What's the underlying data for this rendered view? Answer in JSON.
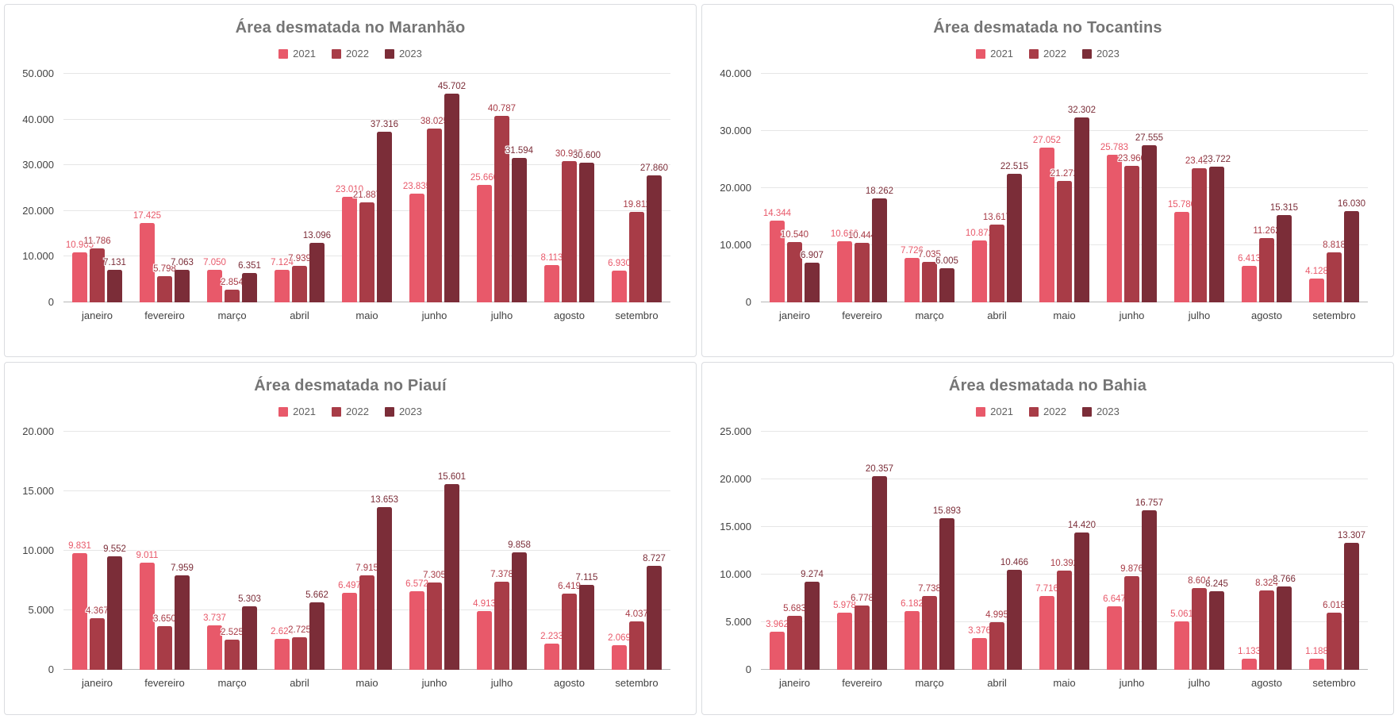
{
  "palette": {
    "series": {
      "2021": "#e8596a",
      "2022": "#a83c47",
      "2023": "#7b2d38"
    },
    "title_color": "#757575",
    "legend_text": "#616161",
    "axis_label_color": "#424242",
    "gridline": "#e6e6e6",
    "baseline": "#b7b7b7",
    "panel_border": "#dadce0",
    "background": "#ffffff"
  },
  "chart_data": [
    {
      "type": "bar",
      "title": "Área desmatada no Maranhão",
      "legend": [
        "2021",
        "2022",
        "2023"
      ],
      "legend_position": "top",
      "grid": true,
      "categories": [
        "janeiro",
        "fevereiro",
        "março",
        "abril",
        "maio",
        "junho",
        "julho",
        "agosto",
        "setembro"
      ],
      "series": [
        {
          "name": "2021",
          "values": [
            10905,
            17425,
            7050,
            7124,
            23010,
            23835,
            25660,
            8113,
            6930
          ]
        },
        {
          "name": "2022",
          "values": [
            11786,
            5798,
            2854,
            7939,
            21887,
            38025,
            40787,
            30935,
            19811
          ]
        },
        {
          "name": "2023",
          "values": [
            7131,
            7063,
            6351,
            13096,
            37316,
            45702,
            31594,
            30600,
            27860
          ]
        }
      ],
      "ylim": [
        0,
        50000
      ],
      "y_ticks": [
        0,
        10000,
        20000,
        30000,
        40000,
        50000
      ],
      "xlabel": "",
      "ylabel": ""
    },
    {
      "type": "bar",
      "title": "Área desmatada no Tocantins",
      "legend": [
        "2021",
        "2022",
        "2023"
      ],
      "legend_position": "top",
      "grid": true,
      "categories": [
        "janeiro",
        "fevereiro",
        "março",
        "abril",
        "maio",
        "junho",
        "julho",
        "agosto",
        "setembro"
      ],
      "series": [
        {
          "name": "2021",
          "values": [
            14344,
            10663,
            7726,
            10872,
            27052,
            25783,
            15780,
            6413,
            4128
          ]
        },
        {
          "name": "2022",
          "values": [
            10540,
            10444,
            7035,
            13617,
            21272,
            23960,
            23437,
            11262,
            8818
          ]
        },
        {
          "name": "2023",
          "values": [
            6907,
            18262,
            6005,
            22515,
            32302,
            27555,
            23722,
            15315,
            16030
          ]
        }
      ],
      "ylim": [
        0,
        40000
      ],
      "y_ticks": [
        0,
        10000,
        20000,
        30000,
        40000
      ],
      "xlabel": "",
      "ylabel": ""
    },
    {
      "type": "bar",
      "title": "Área desmatada no Piauí",
      "legend": [
        "2021",
        "2022",
        "2023"
      ],
      "legend_position": "top",
      "grid": true,
      "categories": [
        "janeiro",
        "fevereiro",
        "março",
        "abril",
        "maio",
        "junho",
        "julho",
        "agosto",
        "setembro"
      ],
      "series": [
        {
          "name": "2021",
          "values": [
            9831,
            9011,
            3737,
            2624,
            6497,
            6572,
            4913,
            2233,
            2069
          ]
        },
        {
          "name": "2022",
          "values": [
            4367,
            3650,
            2525,
            2725,
            7915,
            7305,
            7378,
            6419,
            4037
          ]
        },
        {
          "name": "2023",
          "values": [
            9552,
            7959,
            5303,
            5662,
            13653,
            15601,
            9858,
            7115,
            8727
          ]
        }
      ],
      "ylim": [
        0,
        20000
      ],
      "y_ticks": [
        0,
        5000,
        10000,
        15000,
        20000
      ],
      "xlabel": "",
      "ylabel": ""
    },
    {
      "type": "bar",
      "title": "Área desmatada no Bahia",
      "legend": [
        "2021",
        "2022",
        "2023"
      ],
      "legend_position": "top",
      "grid": true,
      "categories": [
        "janeiro",
        "fevereiro",
        "março",
        "abril",
        "maio",
        "junho",
        "julho",
        "agosto",
        "setembro"
      ],
      "series": [
        {
          "name": "2021",
          "values": [
            3962,
            5978,
            6182,
            3376,
            7716,
            6647,
            5061,
            1133,
            1188
          ]
        },
        {
          "name": "2022",
          "values": [
            5683,
            6778,
            7738,
            4995,
            10392,
            9876,
            8604,
            8324,
            6018
          ]
        },
        {
          "name": "2023",
          "values": [
            9274,
            20357,
            15893,
            10466,
            14420,
            16757,
            8245,
            8766,
            13307
          ]
        }
      ],
      "ylim": [
        0,
        25000
      ],
      "y_ticks": [
        0,
        5000,
        10000,
        15000,
        20000,
        25000
      ],
      "xlabel": "",
      "ylabel": ""
    }
  ]
}
